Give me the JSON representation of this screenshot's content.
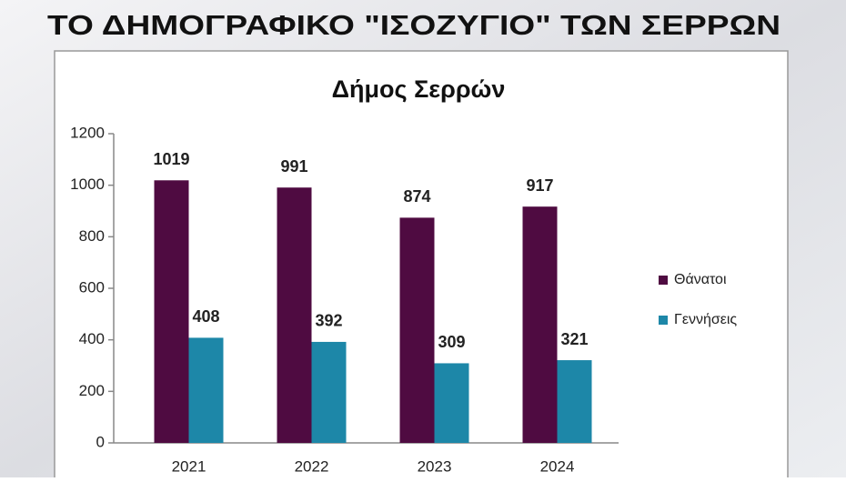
{
  "headline": "ΤΟ ΔΗΜΟΓΡΑΦΙΚΟ \"ΙΣΟΖΥΓΙΟ\" ΤΩΝ ΣΕΡΡΩΝ",
  "chart_data": {
    "type": "bar",
    "title": "Δήμος Σερρών",
    "categories": [
      "2021",
      "2022",
      "2023",
      "2024"
    ],
    "series": [
      {
        "name": "Θάνατοι",
        "color": "#4f0b41",
        "values": [
          1019,
          991,
          874,
          917
        ]
      },
      {
        "name": "Γεννήσεις",
        "color": "#1d87a8",
        "values": [
          408,
          392,
          309,
          321
        ]
      }
    ],
    "ylim": [
      0,
      1200
    ],
    "yticks": [
      0,
      200,
      400,
      600,
      800,
      1000,
      1200
    ],
    "grid": false,
    "legend": "right"
  }
}
